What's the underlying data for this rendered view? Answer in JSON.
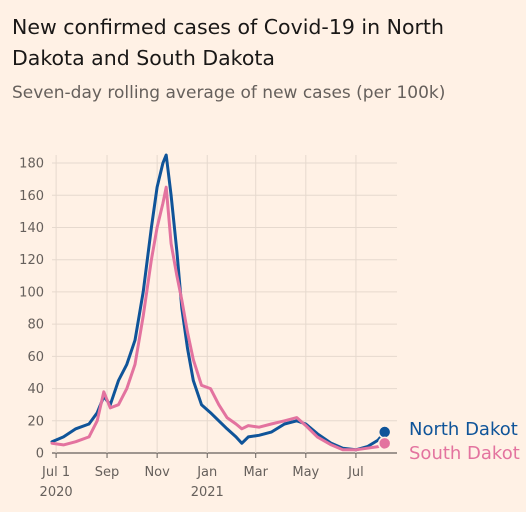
{
  "header": {
    "title": "New confirmed cases of Covid-19 in North Dakota and South Dakota",
    "subtitle": "Seven-day rolling average of new cases (per 100k)"
  },
  "colors": {
    "background": "#fff1e5",
    "grid": "#e6d9ce",
    "north_dakota": "#0f5499",
    "south_dakota": "#e3739f"
  },
  "chart_data": {
    "type": "line",
    "title": "New confirmed cases of Covid-19 in North Dakota and South Dakota",
    "subtitle": "Seven-day rolling average of new cases (per 100k)",
    "xlabel": "",
    "ylabel": "",
    "ylim": [
      0,
      185
    ],
    "xlim": [
      "2020-06-26",
      "2021-08-20"
    ],
    "y_ticks": [
      0,
      20,
      40,
      60,
      80,
      100,
      120,
      140,
      160,
      180
    ],
    "x_ticks": [
      {
        "date": "2020-07-01",
        "label": "Jul 1",
        "sublabel": "2020"
      },
      {
        "date": "2020-09-01",
        "label": "Sep",
        "sublabel": ""
      },
      {
        "date": "2020-11-01",
        "label": "Nov",
        "sublabel": ""
      },
      {
        "date": "2021-01-01",
        "label": "Jan",
        "sublabel": "2021"
      },
      {
        "date": "2021-03-01",
        "label": "Mar",
        "sublabel": ""
      },
      {
        "date": "2021-05-01",
        "label": "May",
        "sublabel": ""
      },
      {
        "date": "2021-07-01",
        "label": "Jul",
        "sublabel": ""
      }
    ],
    "grid": true,
    "legend": "right end labels",
    "series": [
      {
        "name": "North Dakot",
        "color": "#0f5499",
        "points": [
          [
            "2020-06-26",
            7
          ],
          [
            "2020-07-10",
            10
          ],
          [
            "2020-07-25",
            15
          ],
          [
            "2020-08-10",
            18
          ],
          [
            "2020-08-20",
            25
          ],
          [
            "2020-08-28",
            35
          ],
          [
            "2020-09-05",
            30
          ],
          [
            "2020-09-15",
            45
          ],
          [
            "2020-09-25",
            55
          ],
          [
            "2020-10-05",
            70
          ],
          [
            "2020-10-15",
            100
          ],
          [
            "2020-10-25",
            140
          ],
          [
            "2020-11-01",
            165
          ],
          [
            "2020-11-08",
            180
          ],
          [
            "2020-11-12",
            185
          ],
          [
            "2020-11-18",
            160
          ],
          [
            "2020-11-25",
            125
          ],
          [
            "2020-12-01",
            90
          ],
          [
            "2020-12-08",
            65
          ],
          [
            "2020-12-15",
            45
          ],
          [
            "2020-12-25",
            30
          ],
          [
            "2021-01-05",
            25
          ],
          [
            "2021-01-15",
            20
          ],
          [
            "2021-01-25",
            15
          ],
          [
            "2021-02-05",
            10
          ],
          [
            "2021-02-12",
            6
          ],
          [
            "2021-02-20",
            10
          ],
          [
            "2021-03-05",
            11
          ],
          [
            "2021-03-20",
            13
          ],
          [
            "2021-04-05",
            18
          ],
          [
            "2021-04-20",
            20
          ],
          [
            "2021-05-01",
            18
          ],
          [
            "2021-05-15",
            12
          ],
          [
            "2021-06-01",
            6
          ],
          [
            "2021-06-15",
            3
          ],
          [
            "2021-07-01",
            2
          ],
          [
            "2021-07-15",
            4
          ],
          [
            "2021-07-28",
            8
          ],
          [
            "2021-08-05",
            13
          ]
        ]
      },
      {
        "name": "South Dakot",
        "color": "#e3739f",
        "points": [
          [
            "2020-06-26",
            6
          ],
          [
            "2020-07-10",
            5
          ],
          [
            "2020-07-25",
            7
          ],
          [
            "2020-08-10",
            10
          ],
          [
            "2020-08-20",
            20
          ],
          [
            "2020-08-28",
            38
          ],
          [
            "2020-09-05",
            28
          ],
          [
            "2020-09-15",
            30
          ],
          [
            "2020-09-25",
            40
          ],
          [
            "2020-10-05",
            55
          ],
          [
            "2020-10-15",
            85
          ],
          [
            "2020-10-25",
            120
          ],
          [
            "2020-11-01",
            140
          ],
          [
            "2020-11-08",
            155
          ],
          [
            "2020-11-12",
            165
          ],
          [
            "2020-11-18",
            130
          ],
          [
            "2020-11-25",
            110
          ],
          [
            "2020-12-01",
            95
          ],
          [
            "2020-12-08",
            75
          ],
          [
            "2020-12-15",
            58
          ],
          [
            "2020-12-25",
            42
          ],
          [
            "2021-01-05",
            40
          ],
          [
            "2021-01-15",
            30
          ],
          [
            "2021-01-25",
            22
          ],
          [
            "2021-02-05",
            18
          ],
          [
            "2021-02-12",
            15
          ],
          [
            "2021-02-20",
            17
          ],
          [
            "2021-03-05",
            16
          ],
          [
            "2021-03-20",
            18
          ],
          [
            "2021-04-05",
            20
          ],
          [
            "2021-04-20",
            22
          ],
          [
            "2021-05-01",
            17
          ],
          [
            "2021-05-15",
            10
          ],
          [
            "2021-06-01",
            5
          ],
          [
            "2021-06-15",
            2
          ],
          [
            "2021-07-01",
            2
          ],
          [
            "2021-07-15",
            3
          ],
          [
            "2021-07-28",
            4
          ],
          [
            "2021-08-05",
            6
          ]
        ]
      }
    ]
  }
}
